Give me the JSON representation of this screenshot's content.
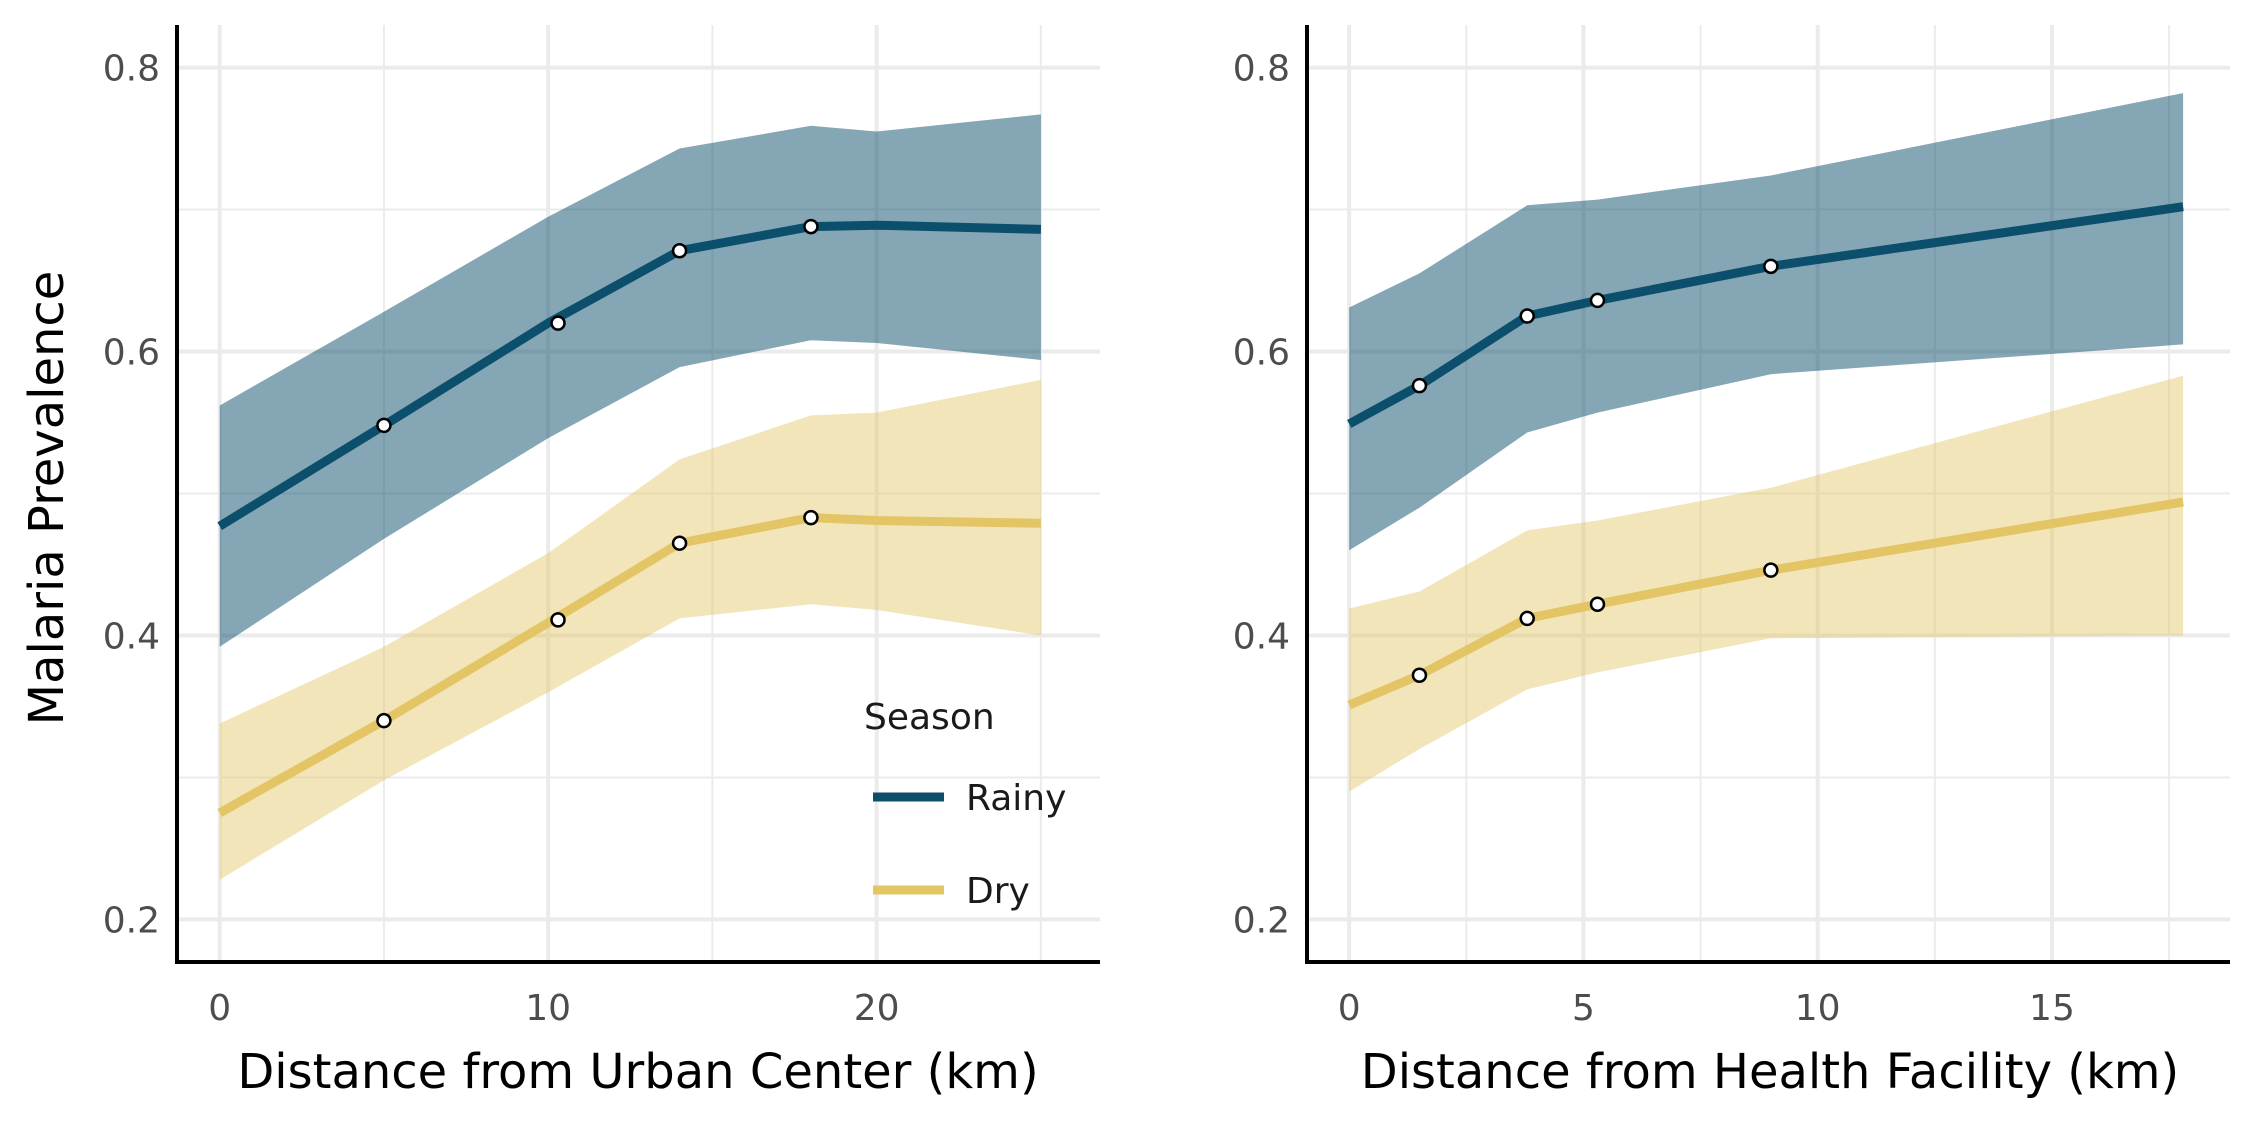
{
  "colors": {
    "rainy": "#0b4f6c",
    "dry": "#e3c565",
    "grid": "#ebebeb",
    "axis": "#000000"
  },
  "legend": {
    "title": "Season",
    "items": [
      {
        "label": "Rainy",
        "key": "rainy"
      },
      {
        "label": "Dry",
        "key": "dry"
      }
    ]
  },
  "chart_data": [
    {
      "type": "line",
      "xlabel": "Distance from Urban Center (km)",
      "ylabel": "Malaria Prevalence",
      "xlim": [
        -1.3,
        26.8
      ],
      "ylim": [
        0.17,
        0.83
      ],
      "xticks": [
        0,
        10,
        20
      ],
      "xticks_minor": [
        5,
        15,
        25
      ],
      "yticks": [
        0.2,
        0.4,
        0.6,
        0.8
      ],
      "yticks_minor": [
        0.3,
        0.5,
        0.7
      ],
      "legend": "inside-bottom-right",
      "series": [
        {
          "name": "Rainy",
          "key": "rainy",
          "x": [
            0,
            5,
            10,
            14,
            18,
            20,
            25
          ],
          "y": [
            0.477,
            0.548,
            0.62,
            0.671,
            0.688,
            0.689,
            0.686
          ],
          "lower": [
            0.392,
            0.468,
            0.539,
            0.589,
            0.608,
            0.606,
            0.594
          ],
          "upper": [
            0.562,
            0.628,
            0.695,
            0.743,
            0.759,
            0.755,
            0.767
          ],
          "points": {
            "x": [
              5,
              10.3,
              14,
              18
            ],
            "y": [
              0.548,
              0.62,
              0.671,
              0.688
            ]
          }
        },
        {
          "name": "Dry",
          "key": "dry",
          "x": [
            0,
            5,
            10,
            14,
            18,
            20,
            25
          ],
          "y": [
            0.275,
            0.34,
            0.409,
            0.465,
            0.483,
            0.481,
            0.479
          ],
          "lower": [
            0.228,
            0.298,
            0.36,
            0.412,
            0.422,
            0.418,
            0.4
          ],
          "upper": [
            0.338,
            0.392,
            0.458,
            0.524,
            0.555,
            0.557,
            0.58
          ],
          "points": {
            "x": [
              5,
              10.3,
              14,
              18
            ],
            "y": [
              0.34,
              0.411,
              0.465,
              0.483
            ]
          }
        }
      ]
    },
    {
      "type": "line",
      "xlabel": "Distance from Health Facility (km)",
      "ylabel": "",
      "xlim": [
        -0.9,
        18.8
      ],
      "ylim": [
        0.17,
        0.83
      ],
      "xticks": [
        0,
        5,
        10,
        15
      ],
      "xticks_minor": [
        2.5,
        7.5,
        12.5,
        17.5
      ],
      "yticks": [
        0.2,
        0.4,
        0.6,
        0.8
      ],
      "yticks_minor": [
        0.3,
        0.5,
        0.7
      ],
      "series": [
        {
          "name": "Rainy",
          "key": "rainy",
          "x": [
            0,
            1.5,
            3.8,
            5.3,
            9.0,
            17.8
          ],
          "y": [
            0.549,
            0.576,
            0.625,
            0.636,
            0.66,
            0.702
          ],
          "lower": [
            0.46,
            0.49,
            0.543,
            0.557,
            0.584,
            0.605
          ],
          "upper": [
            0.631,
            0.655,
            0.703,
            0.707,
            0.724,
            0.782
          ],
          "points": {
            "x": [
              1.5,
              3.8,
              5.3,
              9.0
            ],
            "y": [
              0.576,
              0.625,
              0.636,
              0.66
            ]
          }
        },
        {
          "name": "Dry",
          "key": "dry",
          "x": [
            0,
            1.5,
            3.8,
            5.3,
            9.0,
            17.8
          ],
          "y": [
            0.351,
            0.372,
            0.412,
            0.422,
            0.446,
            0.494
          ],
          "lower": [
            0.29,
            0.32,
            0.362,
            0.374,
            0.398,
            0.4
          ],
          "upper": [
            0.419,
            0.431,
            0.474,
            0.481,
            0.504,
            0.583
          ],
          "points": {
            "x": [
              1.5,
              3.8,
              5.3,
              9.0
            ],
            "y": [
              0.372,
              0.412,
              0.422,
              0.446
            ]
          }
        }
      ]
    }
  ]
}
